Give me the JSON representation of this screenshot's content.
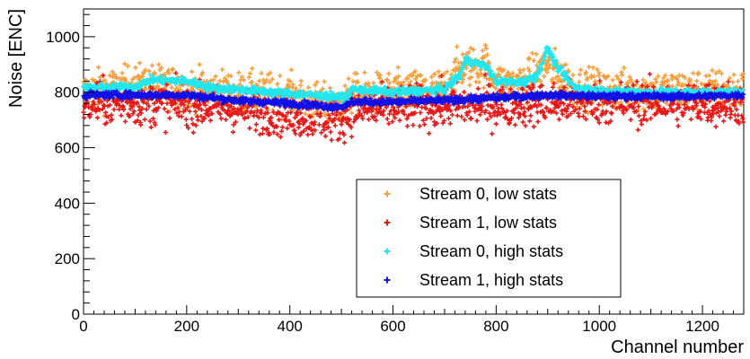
{
  "chart_data": {
    "type": "scatter",
    "title": "",
    "xlabel": "Channel number",
    "ylabel": "Noise [ENC]",
    "xlim": [
      0,
      1280
    ],
    "ylim": [
      0,
      1100
    ],
    "x_ticks": [
      0,
      200,
      400,
      600,
      800,
      1000,
      1200
    ],
    "y_ticks": [
      0,
      200,
      400,
      600,
      800,
      1000
    ],
    "x_tick_labels": [
      "0",
      "200",
      "400",
      "600",
      "800",
      "1000",
      "1200"
    ],
    "y_tick_labels": [
      "0",
      "200",
      "400",
      "600",
      "800",
      "1000"
    ],
    "grid": false,
    "legend_position": "bottom-center",
    "marker": "plus",
    "series": [
      {
        "name": "Stream 0, low stats",
        "color": "#f5a040",
        "channels": [
          0,
          1279
        ],
        "baseline": [
          [
            0,
            800
          ],
          [
            40,
            810
          ],
          [
            120,
            830
          ],
          [
            200,
            815
          ],
          [
            300,
            800
          ],
          [
            400,
            790
          ],
          [
            450,
            760
          ],
          [
            500,
            750
          ],
          [
            520,
            790
          ],
          [
            600,
            800
          ],
          [
            700,
            810
          ],
          [
            730,
            890
          ],
          [
            780,
            900
          ],
          [
            800,
            830
          ],
          [
            850,
            830
          ],
          [
            900,
            900
          ],
          [
            950,
            820
          ],
          [
            1000,
            810
          ],
          [
            1100,
            805
          ],
          [
            1200,
            810
          ],
          [
            1279,
            805
          ]
        ],
        "spread": 65,
        "stride": 1
      },
      {
        "name": "Stream 1, low stats",
        "color": "#e81818",
        "channels": [
          0,
          1279
        ],
        "baseline": [
          [
            0,
            760
          ],
          [
            100,
            760
          ],
          [
            200,
            755
          ],
          [
            300,
            740
          ],
          [
            400,
            720
          ],
          [
            500,
            700
          ],
          [
            520,
            735
          ],
          [
            600,
            745
          ],
          [
            700,
            750
          ],
          [
            800,
            755
          ],
          [
            900,
            760
          ],
          [
            1000,
            765
          ],
          [
            1100,
            760
          ],
          [
            1200,
            760
          ],
          [
            1279,
            760
          ]
        ],
        "spread": 70,
        "stride": 1
      },
      {
        "name": "Stream 0, high stats",
        "color": "#22e6ee",
        "channels": [
          0,
          1279
        ],
        "baseline": [
          [
            0,
            815
          ],
          [
            100,
            820
          ],
          [
            130,
            845
          ],
          [
            200,
            840
          ],
          [
            250,
            815
          ],
          [
            300,
            810
          ],
          [
            400,
            795
          ],
          [
            480,
            785
          ],
          [
            510,
            780
          ],
          [
            520,
            810
          ],
          [
            600,
            800
          ],
          [
            700,
            810
          ],
          [
            730,
            860
          ],
          [
            740,
            915
          ],
          [
            760,
            905
          ],
          [
            780,
            895
          ],
          [
            800,
            840
          ],
          [
            850,
            835
          ],
          [
            880,
            860
          ],
          [
            900,
            960
          ],
          [
            915,
            900
          ],
          [
            950,
            820
          ],
          [
            1000,
            805
          ],
          [
            1100,
            800
          ],
          [
            1200,
            800
          ],
          [
            1279,
            800
          ]
        ],
        "spread": 12,
        "stride": 1
      },
      {
        "name": "Stream 1, high stats",
        "color": "#1010e6",
        "channels": [
          0,
          1279
        ],
        "baseline": [
          [
            0,
            790
          ],
          [
            100,
            790
          ],
          [
            200,
            790
          ],
          [
            300,
            770
          ],
          [
            400,
            760
          ],
          [
            480,
            748
          ],
          [
            510,
            750
          ],
          [
            520,
            765
          ],
          [
            600,
            765
          ],
          [
            700,
            770
          ],
          [
            800,
            780
          ],
          [
            900,
            790
          ],
          [
            1000,
            785
          ],
          [
            1100,
            785
          ],
          [
            1200,
            785
          ],
          [
            1279,
            790
          ]
        ],
        "spread": 11,
        "stride": 1
      }
    ]
  }
}
